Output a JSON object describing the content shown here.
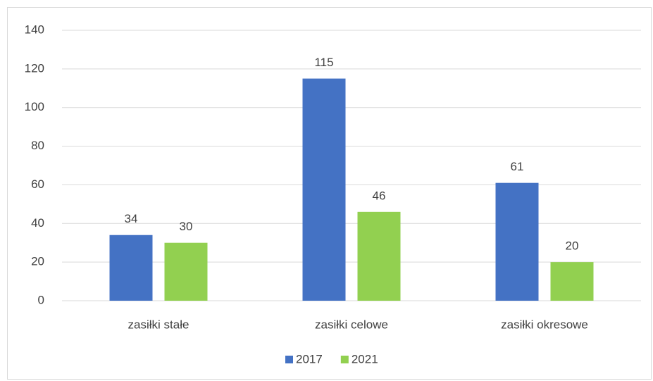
{
  "chart_data": {
    "type": "bar",
    "categories": [
      "zasiłki stałe",
      "zasiłki celowe",
      "zasiłki okresowe"
    ],
    "series": [
      {
        "name": "2017",
        "color": "#4472c4",
        "values": [
          34,
          115,
          61
        ]
      },
      {
        "name": "2021",
        "color": "#92d050",
        "values": [
          30,
          46,
          20
        ]
      }
    ],
    "ylim": [
      0,
      140
    ],
    "yticks": [
      0,
      20,
      40,
      60,
      80,
      100,
      120,
      140
    ],
    "grid": true,
    "legend": "bottom"
  }
}
